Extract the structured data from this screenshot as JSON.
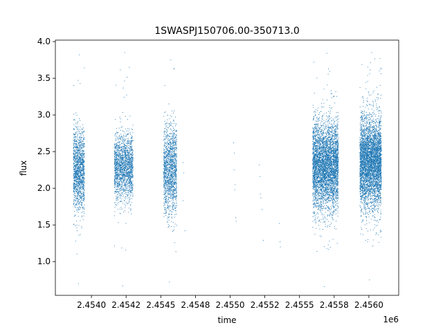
{
  "chart_data": {
    "type": "scatter",
    "title": "1SWASPJ150706.00-350713.0",
    "xlabel": "time",
    "ylabel": "flux",
    "x_offset_label": "1e6",
    "xlim": [
      2453740,
      2456215
    ],
    "ylim": [
      0.54,
      4.02
    ],
    "grid": false,
    "legend": "none",
    "marker_color": "#1f77b4",
    "x_ticks": [
      2454000,
      2454250,
      2454500,
      2454750,
      2455000,
      2455250,
      2455500,
      2455750,
      2456000
    ],
    "x_tick_labels": [
      "2.4540",
      "2.4542",
      "2.4545",
      "2.4548",
      "2.4550",
      "2.4552",
      "2.4555",
      "2.4558",
      "2.4560"
    ],
    "y_ticks": [
      1.0,
      1.5,
      2.0,
      2.5,
      3.0,
      3.5,
      4.0
    ],
    "y_tick_labels": [
      "1.0",
      "1.5",
      "2.0",
      "2.5",
      "3.0",
      "3.5",
      "4.0"
    ],
    "clusters": [
      {
        "season": 1,
        "x_range": [
          2453870,
          2453950
        ],
        "y_center": 2.25,
        "y_spread": 0.28,
        "y_min": 0.7,
        "y_max": 3.82,
        "approx_points": 1400
      },
      {
        "season": 2,
        "x_range": [
          2454165,
          2454300
        ],
        "y_center": 2.3,
        "y_spread": 0.22,
        "y_min": 0.67,
        "y_max": 3.85,
        "approx_points": 1800
      },
      {
        "season": 3,
        "x_range": [
          2454520,
          2454615
        ],
        "y_center": 2.25,
        "y_spread": 0.3,
        "y_min": 0.72,
        "y_max": 3.75,
        "approx_points": 1500
      },
      {
        "season": 4,
        "x_range": [
          2455595,
          2455780
        ],
        "y_center": 2.3,
        "y_spread": 0.3,
        "y_min": 0.66,
        "y_max": 3.84,
        "approx_points": 4500
      },
      {
        "season": 5,
        "x_range": [
          2455935,
          2456090
        ],
        "y_center": 2.35,
        "y_spread": 0.3,
        "y_min": 0.75,
        "y_max": 3.85,
        "approx_points": 4500
      }
    ],
    "sparse_points": [
      {
        "x": 2454660,
        "y": 2.35
      },
      {
        "x": 2454665,
        "y": 2.21
      },
      {
        "x": 2454660,
        "y": 1.83
      },
      {
        "x": 2454675,
        "y": 1.42
      },
      {
        "x": 2455025,
        "y": 2.62
      },
      {
        "x": 2455028,
        "y": 2.25
      },
      {
        "x": 2455030,
        "y": 2.48
      },
      {
        "x": 2455033,
        "y": 1.98
      },
      {
        "x": 2455036,
        "y": 2.05
      },
      {
        "x": 2455040,
        "y": 1.6
      },
      {
        "x": 2455043,
        "y": 1.55
      },
      {
        "x": 2455210,
        "y": 2.32
      },
      {
        "x": 2455214,
        "y": 2.16
      },
      {
        "x": 2455218,
        "y": 1.92
      },
      {
        "x": 2455222,
        "y": 1.87
      },
      {
        "x": 2455230,
        "y": 1.71
      },
      {
        "x": 2455240,
        "y": 1.29
      },
      {
        "x": 2455355,
        "y": 1.52
      },
      {
        "x": 2455360,
        "y": 1.27
      },
      {
        "x": 2455362,
        "y": 1.2
      }
    ]
  }
}
